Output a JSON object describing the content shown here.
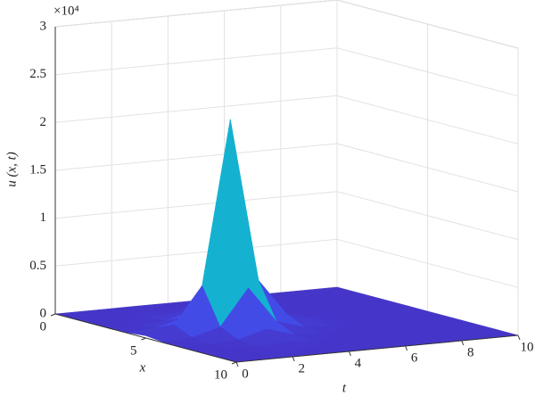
{
  "chart_data": {
    "type": "surface",
    "z_multiplier": "×10⁴",
    "x_label": "x",
    "t_label": "t",
    "z_label": "u (x, t)",
    "x": [
      0,
      1,
      2,
      3,
      4,
      5,
      6,
      7,
      8,
      9,
      10
    ],
    "t": [
      0,
      1,
      2,
      3,
      4,
      5,
      6,
      7,
      8,
      9,
      10
    ],
    "z": [
      [
        0,
        0,
        0,
        0.001,
        0,
        0,
        0,
        0,
        0,
        0,
        0
      ],
      [
        0,
        0,
        0.001,
        0.006,
        0.001,
        0,
        0,
        0,
        0,
        0,
        0
      ],
      [
        0,
        0.001,
        0.006,
        0.025,
        0.006,
        0.001,
        0,
        0,
        0,
        0,
        0
      ],
      [
        0.001,
        0.006,
        0.025,
        0.11,
        0.025,
        0.006,
        0.001,
        0,
        0,
        0,
        0
      ],
      [
        0.006,
        0.025,
        0.11,
        0.49,
        0.11,
        0.025,
        0.006,
        0.001,
        0,
        0,
        0
      ],
      [
        0.025,
        0.11,
        0.49,
        2.2,
        0.49,
        0.11,
        0.025,
        0.006,
        0.001,
        0,
        0
      ],
      [
        0.006,
        0.025,
        0.11,
        0.49,
        0.11,
        0.025,
        0.006,
        0.001,
        0,
        0,
        0
      ],
      [
        0.001,
        0.006,
        0.025,
        0.11,
        0.025,
        0.006,
        0.001,
        0,
        0,
        0,
        0
      ],
      [
        0,
        0.001,
        0.006,
        0.025,
        0.006,
        0.001,
        0,
        0,
        0,
        0,
        0
      ],
      [
        0,
        0,
        0.001,
        0.006,
        0.001,
        0,
        0,
        0,
        0,
        0,
        0
      ],
      [
        0,
        0,
        0,
        0.001,
        0,
        0,
        0,
        0,
        0,
        0,
        0
      ]
    ],
    "xlim": [
      0,
      10
    ],
    "tlim": [
      0,
      10
    ],
    "zlim": [
      0,
      3
    ],
    "xticks": [
      0,
      5,
      10
    ],
    "tticks": [
      0,
      2,
      4,
      6,
      8,
      10
    ],
    "zticks": [
      0,
      0.5,
      1,
      1.5,
      2,
      2.5,
      3
    ],
    "grid": true,
    "colormap": [
      "#4536c9",
      "#4256f6",
      "#2d86f0",
      "#14b2d0",
      "#35c896",
      "#98c854",
      "#e0b932",
      "#fbc82a",
      "#f0e51a"
    ]
  }
}
